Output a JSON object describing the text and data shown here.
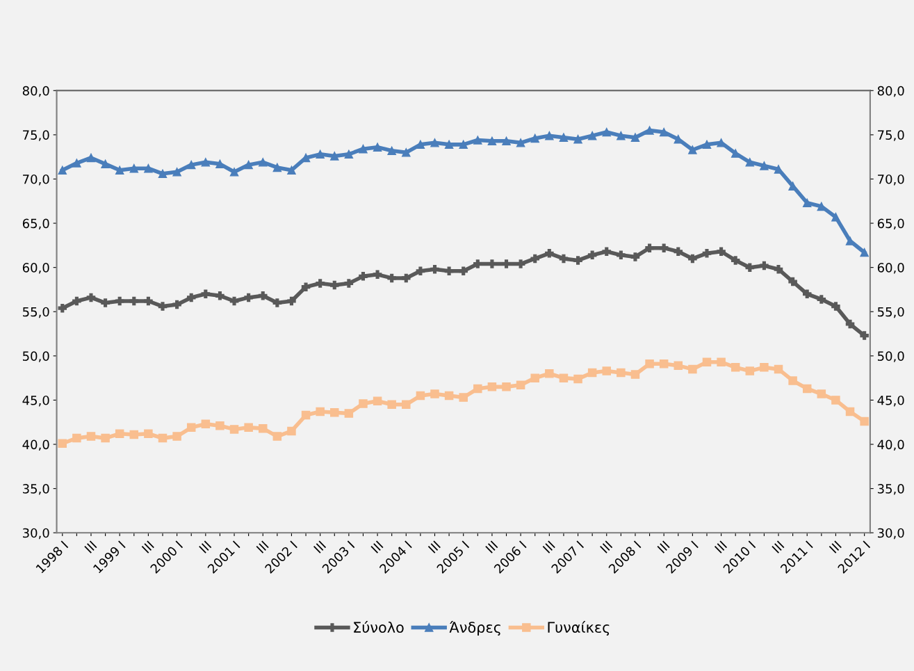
{
  "chart_data": {
    "type": "line",
    "categories": [
      "1998 I",
      null,
      "III",
      null,
      "1999 I",
      null,
      "III",
      null,
      "2000 I",
      null,
      "III",
      null,
      "2001 I",
      null,
      "III",
      null,
      "2002 I",
      null,
      "III",
      null,
      "2003 I",
      null,
      "III",
      null,
      "2004 I",
      null,
      "III",
      null,
      "2005 I",
      null,
      "III",
      null,
      "2006 I",
      null,
      "III",
      null,
      "2007 I",
      null,
      "III",
      null,
      "2008 I",
      null,
      "III",
      null,
      "2009 I",
      null,
      "III",
      null,
      "2010 I",
      null,
      "III",
      null,
      "2011 I",
      null,
      "III",
      null,
      "2012 I"
    ],
    "series": [
      {
        "name": "Σύνολο",
        "color": "#595959",
        "marker": "cross",
        "values": [
          55.4,
          56.2,
          56.6,
          56.0,
          56.2,
          56.2,
          56.2,
          55.6,
          55.8,
          56.6,
          57.0,
          56.8,
          56.2,
          56.6,
          56.8,
          56.0,
          56.2,
          57.8,
          58.2,
          58.0,
          58.2,
          59.0,
          59.2,
          58.8,
          58.8,
          59.6,
          59.8,
          59.6,
          59.6,
          60.4,
          60.4,
          60.4,
          60.4,
          61.0,
          61.6,
          61.0,
          60.8,
          61.4,
          61.8,
          61.4,
          61.2,
          62.2,
          62.2,
          61.8,
          61.0,
          61.6,
          61.8,
          60.8,
          60.0,
          60.2,
          59.8,
          58.4,
          57.0,
          56.4,
          55.6,
          53.6,
          52.3
        ]
      },
      {
        "name": "Άνδρες",
        "color": "#4a7ebb",
        "marker": "triangle",
        "values": [
          71.0,
          71.8,
          72.4,
          71.7,
          71.0,
          71.2,
          71.2,
          70.6,
          70.8,
          71.6,
          71.9,
          71.7,
          70.8,
          71.6,
          71.9,
          71.3,
          71.0,
          72.4,
          72.8,
          72.6,
          72.8,
          73.4,
          73.6,
          73.2,
          73.0,
          73.9,
          74.1,
          73.9,
          73.9,
          74.4,
          74.3,
          74.3,
          74.1,
          74.6,
          74.9,
          74.7,
          74.5,
          74.9,
          75.3,
          74.9,
          74.7,
          75.5,
          75.3,
          74.5,
          73.3,
          73.9,
          74.1,
          72.9,
          71.9,
          71.5,
          71.1,
          69.2,
          67.3,
          66.9,
          65.7,
          63.0,
          61.7
        ]
      },
      {
        "name": "Γυναίκες",
        "color": "#f9be8f",
        "marker": "square",
        "values": [
          40.1,
          40.7,
          40.9,
          40.7,
          41.2,
          41.1,
          41.2,
          40.7,
          40.9,
          41.9,
          42.3,
          42.1,
          41.7,
          41.9,
          41.8,
          40.9,
          41.5,
          43.3,
          43.7,
          43.6,
          43.5,
          44.6,
          44.9,
          44.5,
          44.5,
          45.5,
          45.7,
          45.5,
          45.3,
          46.3,
          46.5,
          46.5,
          46.7,
          47.5,
          48.0,
          47.5,
          47.4,
          48.1,
          48.3,
          48.1,
          47.9,
          49.1,
          49.1,
          48.9,
          48.5,
          49.3,
          49.3,
          48.7,
          48.3,
          48.7,
          48.5,
          47.2,
          46.3,
          45.7,
          45.0,
          43.7,
          42.6
        ]
      }
    ],
    "ylim": [
      30,
      80
    ],
    "yticks": [
      {
        "value": 30,
        "label": "30,0"
      },
      {
        "value": 35,
        "label": "35,0"
      },
      {
        "value": 40,
        "label": "40,0"
      },
      {
        "value": 45,
        "label": "45,0"
      },
      {
        "value": 50,
        "label": "50,0"
      },
      {
        "value": 55,
        "label": "55,0"
      },
      {
        "value": 60,
        "label": "60,0"
      },
      {
        "value": 65,
        "label": "65,0"
      },
      {
        "value": 70,
        "label": "70,0"
      },
      {
        "value": 75,
        "label": "75,0"
      },
      {
        "value": 80,
        "label": "80,0"
      }
    ],
    "y2lim": [
      30,
      80
    ],
    "y2ticks": [
      {
        "value": 30,
        "label": "30,0"
      },
      {
        "value": 35,
        "label": "35,0"
      },
      {
        "value": 40,
        "label": "40,0"
      },
      {
        "value": 45,
        "label": "45,0"
      },
      {
        "value": 50,
        "label": "50,0"
      },
      {
        "value": 55,
        "label": "55,0"
      },
      {
        "value": 60,
        "label": "60,0"
      },
      {
        "value": 65,
        "label": "65,0"
      },
      {
        "value": 70,
        "label": "70,0"
      },
      {
        "value": 75,
        "label": "75,0"
      },
      {
        "value": 80,
        "label": "80,0"
      }
    ],
    "grid": false,
    "legend": "bottom",
    "line_style": "solid"
  }
}
